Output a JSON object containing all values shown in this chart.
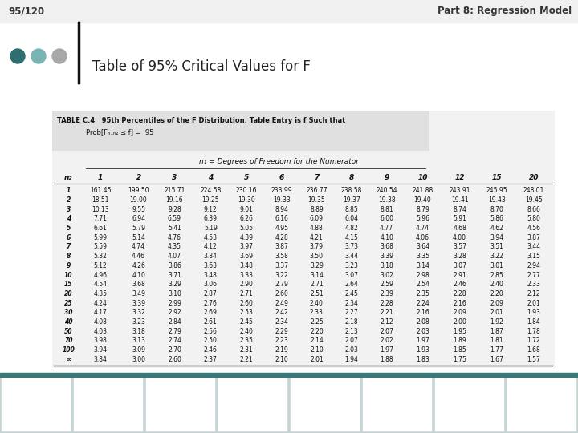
{
  "slide_number": "95/120",
  "part_label": "Part 8: Regression Model",
  "title": "Table of 95% Critical Values for F",
  "table_title": "TABLE C.4",
  "table_subtitle": "95th Percentiles of the F Distribution. Table Entry is f Such that",
  "table_formula": "Prob[Fₙ₁ₙ₂ ≤ f] = .95",
  "numerator_label": "n₁ = Degrees of Freedom for the Numerator",
  "col_headers": [
    "n₂",
    "1",
    "2",
    "3",
    "4",
    "5",
    "6",
    "7",
    "8",
    "9",
    "10",
    "12",
    "15",
    "20"
  ],
  "rows": [
    [
      "1",
      "161.45",
      "199.50",
      "215.71",
      "224.58",
      "230.16",
      "233.99",
      "236.77",
      "238.58",
      "240.54",
      "241.88",
      "243.91",
      "245.95",
      "248.01"
    ],
    [
      "2",
      "18.51",
      "19.00",
      "19.16",
      "19.25",
      "19.30",
      "19.33",
      "19.35",
      "19.37",
      "19.38",
      "19.40",
      "19.41",
      "19.43",
      "19.45"
    ],
    [
      "3",
      "10.13",
      "9.55",
      "9.28",
      "9.12",
      "9.01",
      "8.94",
      "8.89",
      "8.85",
      "8.81",
      "8.79",
      "8.74",
      "8.70",
      "8.66"
    ],
    [
      "4",
      "7.71",
      "6.94",
      "6.59",
      "6.39",
      "6.26",
      "6.16",
      "6.09",
      "6.04",
      "6.00",
      "5.96",
      "5.91",
      "5.86",
      "5.80"
    ],
    [
      "5",
      "6.61",
      "5.79",
      "5.41",
      "5.19",
      "5.05",
      "4.95",
      "4.88",
      "4.82",
      "4.77",
      "4.74",
      "4.68",
      "4.62",
      "4.56"
    ],
    [
      "6",
      "5.99",
      "5.14",
      "4.76",
      "4.53",
      "4.39",
      "4.28",
      "4.21",
      "4.15",
      "4.10",
      "4.06",
      "4.00",
      "3.94",
      "3.87"
    ],
    [
      "7",
      "5.59",
      "4.74",
      "4.35",
      "4.12",
      "3.97",
      "3.87",
      "3.79",
      "3.73",
      "3.68",
      "3.64",
      "3.57",
      "3.51",
      "3.44"
    ],
    [
      "8",
      "5.32",
      "4.46",
      "4.07",
      "3.84",
      "3.69",
      "3.58",
      "3.50",
      "3.44",
      "3.39",
      "3.35",
      "3.28",
      "3.22",
      "3.15"
    ],
    [
      "9",
      "5.12",
      "4.26",
      "3.86",
      "3.63",
      "3.48",
      "3.37",
      "3.29",
      "3.23",
      "3.18",
      "3.14",
      "3.07",
      "3.01",
      "2.94"
    ],
    [
      "10",
      "4.96",
      "4.10",
      "3.71",
      "3.48",
      "3.33",
      "3.22",
      "3.14",
      "3.07",
      "3.02",
      "2.98",
      "2.91",
      "2.85",
      "2.77"
    ],
    [
      "15",
      "4.54",
      "3.68",
      "3.29",
      "3.06",
      "2.90",
      "2.79",
      "2.71",
      "2.64",
      "2.59",
      "2.54",
      "2.46",
      "2.40",
      "2.33"
    ],
    [
      "20",
      "4.35",
      "3.49",
      "3.10",
      "2.87",
      "2.71",
      "2.60",
      "2.51",
      "2.45",
      "2.39",
      "2.35",
      "2.28",
      "2.20",
      "2.12"
    ],
    [
      "25",
      "4.24",
      "3.39",
      "2.99",
      "2.76",
      "2.60",
      "2.49",
      "2.40",
      "2.34",
      "2.28",
      "2.24",
      "2.16",
      "2.09",
      "2.01"
    ],
    [
      "30",
      "4.17",
      "3.32",
      "2.92",
      "2.69",
      "2.53",
      "2.42",
      "2.33",
      "2.27",
      "2.21",
      "2.16",
      "2.09",
      "2.01",
      "1.93"
    ],
    [
      "40",
      "4.08",
      "3.23",
      "2.84",
      "2.61",
      "2.45",
      "2.34",
      "2.25",
      "2.18",
      "2.12",
      "2.08",
      "2.00",
      "1.92",
      "1.84"
    ],
    [
      "50",
      "4.03",
      "3.18",
      "2.79",
      "2.56",
      "2.40",
      "2.29",
      "2.20",
      "2.13",
      "2.07",
      "2.03",
      "1.95",
      "1.87",
      "1.78"
    ],
    [
      "70",
      "3.98",
      "3.13",
      "2.74",
      "2.50",
      "2.35",
      "2.23",
      "2.14",
      "2.07",
      "2.02",
      "1.97",
      "1.89",
      "1.81",
      "1.72"
    ],
    [
      "100",
      "3.94",
      "3.09",
      "2.70",
      "2.46",
      "2.31",
      "2.19",
      "2.10",
      "2.03",
      "1.97",
      "1.93",
      "1.85",
      "1.77",
      "1.68"
    ],
    [
      "∞",
      "3.84",
      "3.00",
      "2.60",
      "2.37",
      "2.21",
      "2.10",
      "2.01",
      "1.94",
      "1.88",
      "1.83",
      "1.75",
      "1.67",
      "1.57"
    ]
  ],
  "dot_colors": [
    "#2d6e6e",
    "#7ab5b5",
    "#a8a8a8"
  ],
  "separator_color": "#111111",
  "header_bg": "#e0e0e0",
  "table_bg": "#f2f2f2",
  "bottom_bar_color": "#3a7878",
  "bottom_strip_color": "#c5d5d5",
  "slide_bg": "#ffffff",
  "top_bar_bg": "#f0f0f0"
}
